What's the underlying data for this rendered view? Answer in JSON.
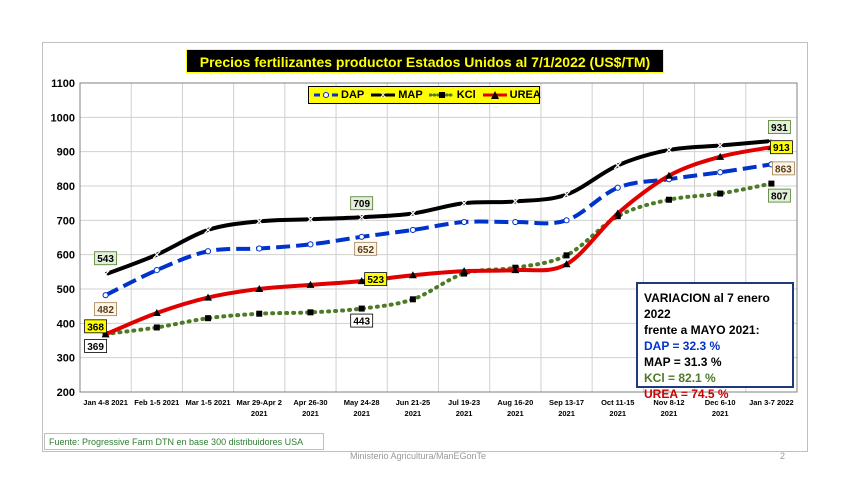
{
  "title": "Precios fertilizantes productor  Estados Unidos al 7/1/2022 (US$/TM)",
  "source": "Fuente: Progressive Farm DTN en base 300 distribuidores USA",
  "footer": "Ministerio Agricultura/ManEGonTe",
  "page_number": "2",
  "info": {
    "line1": "VARIACION al 7 enero 2022",
    "line2": "frente a MAYO 2021:",
    "dap": "DAP   = 32.3 %",
    "map": "MAP   = 31.3  %",
    "kcl": "KCl    = 82.1 %",
    "urea": "UREA = 74.5 %",
    "colors": {
      "dap": "#0033cc",
      "map": "#000000",
      "kcl": "#4e7a27",
      "urea": "#cc0000"
    }
  },
  "chart_data": {
    "type": "line",
    "title": "Precios fertilizantes productor  Estados Unidos al 7/1/2022 (US$/TM)",
    "xlabel": "",
    "ylabel": "",
    "ylim": [
      200,
      1100
    ],
    "yticks": [
      200,
      300,
      400,
      500,
      600,
      700,
      800,
      900,
      1000,
      1100
    ],
    "grid": true,
    "legend_position": "top-center",
    "categories": [
      [
        "Jan 4-8 2021"
      ],
      [
        "Feb 1-5 2021"
      ],
      [
        "Mar 1-5 2021"
      ],
      [
        "Mar 29-Apr 2",
        "2021"
      ],
      [
        "Apr 26-30",
        "2021"
      ],
      [
        "May 24-28",
        "2021"
      ],
      [
        "Jun 21-25",
        "2021"
      ],
      [
        "Jul 19-23",
        "2021"
      ],
      [
        "Aug 16-20",
        "2021"
      ],
      [
        "Sep 13-17",
        "2021"
      ],
      [
        "Oct 11-15",
        "2021"
      ],
      [
        "Nov 8-12",
        "2021"
      ],
      [
        "Dec 6-10",
        "2021"
      ],
      [
        "Jan 3-7 2022"
      ]
    ],
    "series": [
      {
        "name": "DAP",
        "color": "#0033cc",
        "values": [
          482,
          555,
          610,
          618,
          630,
          652,
          672,
          695,
          695,
          700,
          795,
          820,
          840,
          863
        ]
      },
      {
        "name": "MAP",
        "color": "#000000",
        "values": [
          543,
          600,
          672,
          697,
          703,
          709,
          720,
          750,
          755,
          775,
          860,
          905,
          918,
          931
        ]
      },
      {
        "name": "KCl",
        "color": "#4e7a27",
        "values": [
          369,
          388,
          415,
          428,
          432,
          443,
          470,
          545,
          562,
          598,
          712,
          760,
          778,
          807
        ]
      },
      {
        "name": "UREA",
        "color": "#e00000",
        "values": [
          368,
          430,
          475,
          500,
          512,
          523,
          540,
          552,
          555,
          572,
          720,
          830,
          885,
          913
        ]
      }
    ],
    "data_labels": [
      {
        "series": "MAP",
        "index": 0,
        "text": "543",
        "style": "green-box"
      },
      {
        "series": "DAP",
        "index": 0,
        "text": "482",
        "style": "tan-box"
      },
      {
        "series": "UREA",
        "index": 0,
        "text": "368",
        "style": "yellow-box"
      },
      {
        "series": "KCl",
        "index": 0,
        "text": "369",
        "style": "white-box"
      },
      {
        "series": "MAP",
        "index": 5,
        "text": "709",
        "style": "green-box"
      },
      {
        "series": "DAP",
        "index": 5,
        "text": "652",
        "style": "tan-box"
      },
      {
        "series": "UREA",
        "index": 5,
        "text": "523",
        "style": "yellow-box"
      },
      {
        "series": "KCl",
        "index": 5,
        "text": "443",
        "style": "white-box"
      },
      {
        "series": "MAP",
        "index": 13,
        "text": "931",
        "style": "green-box"
      },
      {
        "series": "UREA",
        "index": 13,
        "text": "913",
        "style": "yellow-box"
      },
      {
        "series": "DAP",
        "index": 13,
        "text": "863",
        "style": "tan-box"
      },
      {
        "series": "KCl",
        "index": 13,
        "text": "807",
        "style": "green-box"
      }
    ]
  }
}
